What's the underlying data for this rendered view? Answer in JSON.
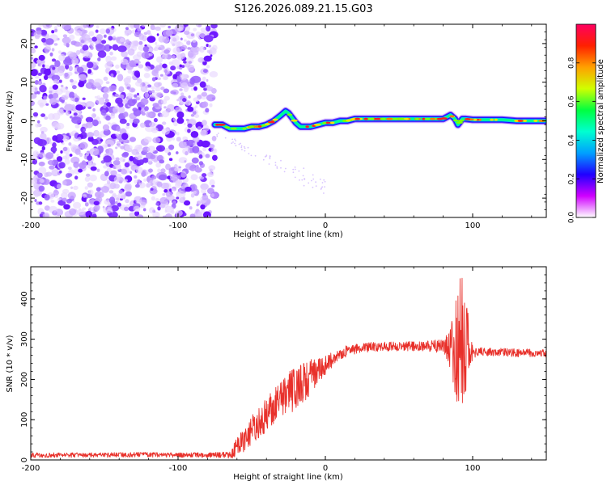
{
  "title": "S126.2026.089.21.15.G03",
  "colors": {
    "snr_line": "#e8302a",
    "scatter": "#7a2cff",
    "track_edge": "#1010ff",
    "track_core": "#ff2020"
  },
  "chart_data": [
    {
      "type": "heatmap",
      "name": "spectrogram",
      "xlabel": "Height of straight line (km)",
      "ylabel": "Frequency (Hz)",
      "xlim": [
        -200,
        150
      ],
      "ylim": [
        -25,
        25
      ],
      "xticks": [
        -200,
        -100,
        0,
        100
      ],
      "yticks": [
        -20,
        -10,
        0,
        10,
        20
      ],
      "noise_region_x": [
        -200,
        -75
      ],
      "track": {
        "x": [
          -75,
          -70,
          -65,
          -60,
          -55,
          -50,
          -45,
          -40,
          -35,
          -30,
          -27,
          -25,
          -22,
          -20,
          -17,
          -15,
          -10,
          -5,
          0,
          5,
          10,
          15,
          20,
          25,
          30,
          35,
          40,
          50,
          60,
          70,
          80,
          85,
          88,
          90,
          93,
          95,
          100,
          105,
          110,
          120,
          130,
          140,
          150
        ],
        "freq": [
          -1,
          -1,
          -2,
          -2,
          -2,
          -1.5,
          -1.5,
          -1,
          0,
          1.5,
          2.5,
          2,
          0.5,
          -0.5,
          -1.5,
          -1.5,
          -1.5,
          -1,
          -0.5,
          -0.5,
          0,
          0,
          0.5,
          0.5,
          0.5,
          0.5,
          0.5,
          0.5,
          0.5,
          0.5,
          0.5,
          1.5,
          0.5,
          -1,
          0.5,
          0.5,
          0.3,
          0.3,
          0.3,
          0.3,
          0,
          0,
          0
        ]
      },
      "colorbar": {
        "label": "Normalized spectral amplitude",
        "ticks": [
          0.0,
          0.2,
          0.4,
          0.6,
          0.8
        ],
        "tick_labels": [
          "0.0",
          "0.2",
          "0.4",
          "0.6",
          "0.8"
        ],
        "range": [
          0,
          1
        ],
        "stops": [
          "#ffffff",
          "#d000ff",
          "#2000ff",
          "#00a0ff",
          "#00ffd0",
          "#00ff40",
          "#d0ff00",
          "#ffa000",
          "#ff2000",
          "#ff0060"
        ]
      }
    },
    {
      "type": "line",
      "name": "snr",
      "xlabel": "Height of straight line (km)",
      "ylabel": "SNR (10 * v/v)",
      "xlim": [
        -200,
        150
      ],
      "ylim": [
        0,
        480
      ],
      "xticks": [
        -200,
        -100,
        0,
        100
      ],
      "yticks": [
        0,
        100,
        200,
        300,
        400
      ],
      "series": [
        {
          "name": "SNR",
          "x": [
            -200,
            -180,
            -160,
            -140,
            -120,
            -100,
            -80,
            -65,
            -60,
            -55,
            -50,
            -45,
            -40,
            -35,
            -30,
            -25,
            -20,
            -15,
            -10,
            -5,
            0,
            5,
            10,
            15,
            20,
            25,
            30,
            40,
            50,
            60,
            70,
            80,
            85,
            88,
            90,
            92,
            94,
            96,
            98,
            100,
            102,
            105,
            110,
            120,
            130,
            140,
            150
          ],
          "mean": [
            12,
            12,
            12,
            13,
            13,
            12,
            12,
            12,
            30,
            50,
            75,
            95,
            115,
            135,
            150,
            165,
            180,
            190,
            205,
            220,
            235,
            250,
            262,
            272,
            275,
            278,
            280,
            282,
            283,
            283,
            283,
            280,
            278,
            275,
            270,
            275,
            280,
            275,
            272,
            270,
            270,
            270,
            268,
            268,
            266,
            266,
            265
          ],
          "spread": [
            6,
            6,
            6,
            6,
            6,
            6,
            6,
            8,
            25,
            30,
            35,
            40,
            45,
            45,
            50,
            55,
            55,
            50,
            45,
            35,
            25,
            18,
            15,
            15,
            12,
            12,
            12,
            12,
            12,
            12,
            14,
            20,
            50,
            120,
            160,
            200,
            170,
            120,
            60,
            25,
            15,
            12,
            10,
            10,
            10,
            10,
            10
          ]
        }
      ]
    }
  ]
}
